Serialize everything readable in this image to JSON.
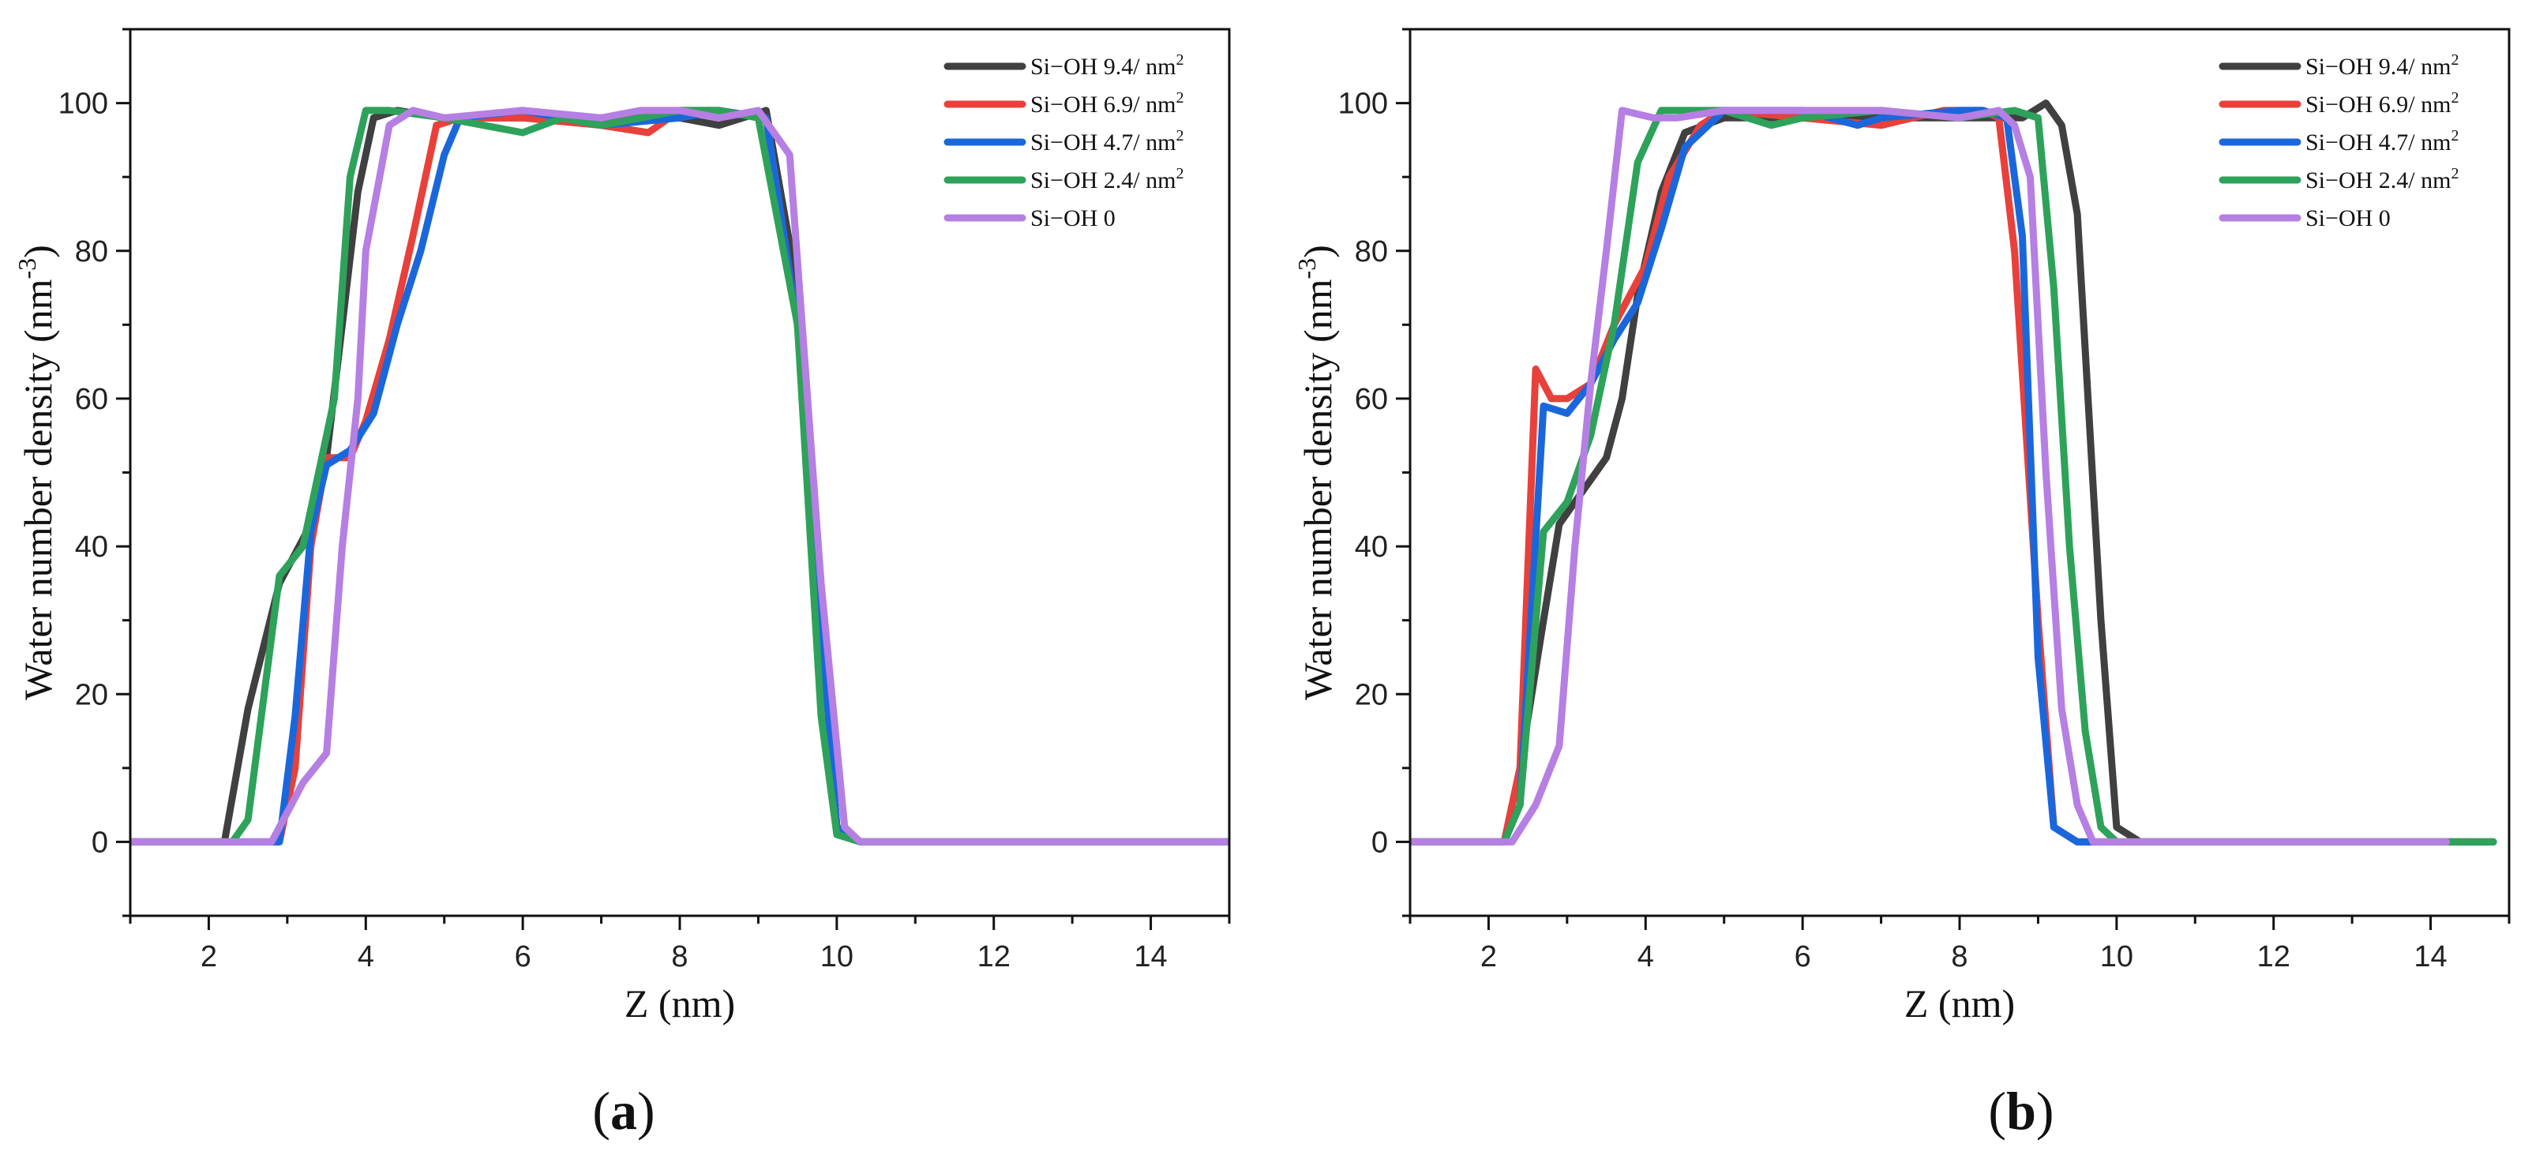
{
  "chart_data": [
    {
      "type": "line",
      "panel": "a",
      "panel_label": "(a)",
      "xlabel": "Z (nm)",
      "ylabel_main": "Water number density (nm",
      "ylabel_sup": "-3",
      "ylabel_close": ")",
      "xlim": [
        1,
        15
      ],
      "ylim": [
        -10,
        110
      ],
      "xticks": [
        2,
        4,
        6,
        8,
        10,
        12,
        14
      ],
      "yticks": [
        0,
        20,
        40,
        60,
        80,
        100
      ],
      "legend_position": "top-right",
      "series": [
        {
          "name": "Si−OH 9.4/ nm",
          "sup": "2",
          "color": "#404040",
          "x": [
            1,
            2.2,
            2.5,
            2.9,
            3.3,
            3.5,
            3.7,
            3.9,
            4.1,
            4.4,
            5.0,
            6.0,
            7.0,
            8.0,
            8.5,
            9.1,
            9.5,
            9.8,
            10.0,
            10.3,
            10.6,
            15
          ],
          "y": [
            0,
            0,
            18,
            35,
            43,
            52,
            70,
            88,
            98,
            99,
            98,
            98,
            98,
            98,
            97,
            99,
            75,
            30,
            2,
            0,
            0,
            0
          ]
        },
        {
          "name": "Si−OH 6.9/ nm",
          "sup": "2",
          "color": "#e8403a",
          "x": [
            1,
            2.8,
            2.9,
            3.1,
            3.3,
            3.5,
            3.8,
            4.0,
            4.3,
            4.6,
            4.9,
            5.2,
            6.0,
            7.0,
            7.6,
            8.0,
            8.5,
            9.1,
            9.5,
            9.8,
            10.0,
            10.3,
            10.6,
            15
          ],
          "y": [
            0,
            0,
            0,
            10,
            40,
            52,
            52,
            57,
            68,
            82,
            97,
            98,
            98,
            97,
            96,
            99,
            99,
            98,
            70,
            30,
            2,
            0,
            0,
            0
          ]
        },
        {
          "name": "Si−OH 4.7/ nm",
          "sup": "2",
          "color": "#1a67dc",
          "x": [
            1,
            2.8,
            2.9,
            3.1,
            3.3,
            3.5,
            3.8,
            4.1,
            4.4,
            4.7,
            5.0,
            5.2,
            6.0,
            7.0,
            8.0,
            8.5,
            9.1,
            9.5,
            9.8,
            10.0,
            10.3,
            10.6,
            15
          ],
          "y": [
            0,
            0,
            0,
            17,
            42,
            51,
            53,
            58,
            70,
            80,
            93,
            98,
            99,
            97,
            98,
            99,
            98,
            70,
            30,
            2,
            0,
            0,
            0
          ]
        },
        {
          "name": "Si−OH 2.4/ nm",
          "sup": "2",
          "color": "#2ea25a",
          "x": [
            1,
            2.3,
            2.5,
            2.9,
            3.2,
            3.6,
            3.8,
            4.0,
            4.3,
            5.0,
            5.5,
            6.0,
            6.5,
            7.0,
            8.0,
            8.5,
            9.0,
            9.5,
            9.8,
            10.0,
            10.3,
            10.6,
            15
          ],
          "y": [
            0,
            0,
            3,
            36,
            40,
            60,
            90,
            99,
            99,
            98,
            97,
            96,
            98,
            97,
            99,
            99,
            98,
            70,
            17,
            1,
            0,
            0,
            0
          ]
        },
        {
          "name": "Si−OH 0",
          "sup": "",
          "color": "#b57fe3",
          "x": [
            1,
            2.8,
            3.0,
            3.2,
            3.5,
            3.7,
            3.9,
            4.0,
            4.3,
            4.6,
            5.0,
            6.0,
            7.0,
            7.5,
            8.0,
            8.5,
            9.0,
            9.4,
            9.8,
            10.1,
            10.3,
            10.6,
            15
          ],
          "y": [
            0,
            0,
            4,
            8,
            12,
            40,
            60,
            80,
            97,
            99,
            98,
            99,
            98,
            99,
            99,
            98,
            99,
            93,
            35,
            2,
            0,
            0,
            0
          ]
        }
      ]
    },
    {
      "type": "line",
      "panel": "b",
      "panel_label": "(b)",
      "xlabel": "Z (nm)",
      "ylabel_main": "Water number density (nm",
      "ylabel_sup": "-3",
      "ylabel_close": ")",
      "xlim": [
        1,
        15
      ],
      "ylim": [
        -10,
        110
      ],
      "xticks": [
        2,
        4,
        6,
        8,
        10,
        12,
        14
      ],
      "yticks": [
        0,
        20,
        40,
        60,
        80,
        100
      ],
      "legend_position": "top-right",
      "series": [
        {
          "name": "Si−OH 9.4/ nm",
          "sup": "2",
          "color": "#404040",
          "x": [
            1,
            2.2,
            2.4,
            2.7,
            2.9,
            3.1,
            3.3,
            3.5,
            3.7,
            3.9,
            4.2,
            4.5,
            5.0,
            6.0,
            7.0,
            8.0,
            8.8,
            9.1,
            9.3,
            9.5,
            9.8,
            10.0,
            10.3,
            14.8
          ],
          "y": [
            0,
            0,
            10,
            30,
            43,
            46,
            49,
            52,
            60,
            74,
            88,
            96,
            98,
            98,
            98,
            98,
            98,
            100,
            97,
            85,
            30,
            2,
            0,
            0
          ]
        },
        {
          "name": "Si−OH 6.9/ nm",
          "sup": "2",
          "color": "#e8403a",
          "x": [
            1,
            2.2,
            2.4,
            2.6,
            2.8,
            3.0,
            3.3,
            3.6,
            4.0,
            4.3,
            4.7,
            5.0,
            6.0,
            7.0,
            7.8,
            8.3,
            8.5,
            8.7,
            9.0,
            9.2,
            9.5,
            9.8,
            14.8
          ],
          "y": [
            0,
            0,
            10,
            64,
            60,
            60,
            62,
            70,
            78,
            90,
            97,
            99,
            98,
            97,
            99,
            99,
            98,
            80,
            30,
            2,
            0,
            0,
            0
          ]
        },
        {
          "name": "Si−OH 4.7/ nm",
          "sup": "2",
          "color": "#1a67dc",
          "x": [
            1,
            2.2,
            2.4,
            2.7,
            3.0,
            3.3,
            3.6,
            3.9,
            4.2,
            4.5,
            4.8,
            5.0,
            6.0,
            6.7,
            7.0,
            8.0,
            8.3,
            8.6,
            8.8,
            9.0,
            9.2,
            9.5,
            9.7,
            14.8
          ],
          "y": [
            0,
            0,
            5,
            59,
            58,
            62,
            68,
            73,
            83,
            94,
            97,
            99,
            99,
            97,
            98,
            99,
            99,
            98,
            82,
            25,
            2,
            0,
            0,
            0
          ]
        },
        {
          "name": "Si−OH 2.4/ nm",
          "sup": "2",
          "color": "#2ea25a",
          "x": [
            1,
            2.2,
            2.4,
            2.7,
            3.0,
            3.3,
            3.6,
            3.9,
            4.2,
            5.0,
            5.6,
            6.0,
            7.0,
            8.0,
            8.7,
            9.0,
            9.2,
            9.4,
            9.6,
            9.8,
            10.0,
            14.8
          ],
          "y": [
            0,
            0,
            5,
            42,
            46,
            55,
            70,
            92,
            99,
            99,
            97,
            98,
            99,
            98,
            99,
            98,
            75,
            40,
            15,
            2,
            0,
            0
          ]
        },
        {
          "name": "Si−OH 0",
          "sup": "",
          "color": "#b57fe3",
          "x": [
            1,
            2.3,
            2.6,
            2.9,
            3.1,
            3.3,
            3.5,
            3.7,
            4.1,
            4.4,
            5.0,
            6.0,
            7.0,
            8.0,
            8.5,
            8.7,
            8.9,
            9.1,
            9.3,
            9.5,
            9.7,
            14.2
          ],
          "y": [
            0,
            0,
            5,
            13,
            40,
            62,
            80,
            99,
            98,
            98,
            99,
            99,
            99,
            98,
            99,
            97,
            90,
            50,
            18,
            5,
            0,
            0
          ]
        }
      ]
    }
  ]
}
